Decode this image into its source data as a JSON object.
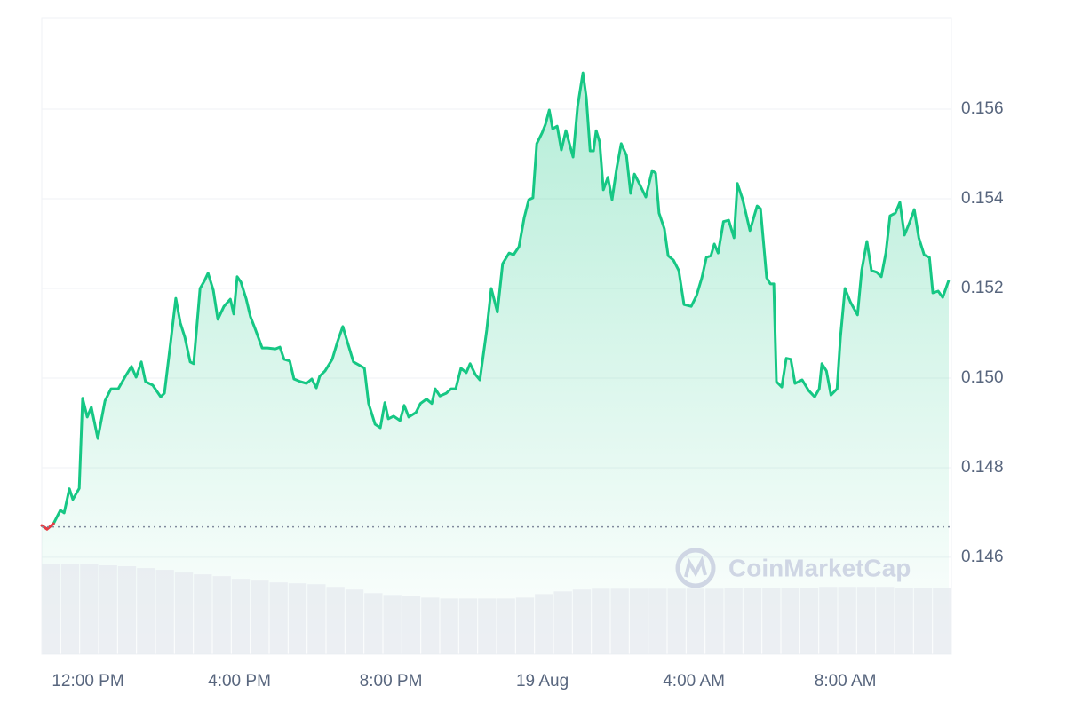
{
  "chart_data": {
    "type": "line",
    "x": [
      -1.22,
      -1.08,
      -0.91,
      -0.73,
      -0.63,
      -0.49,
      -0.4,
      -0.23,
      -0.14,
      -0.02,
      0.09,
      0.26,
      0.45,
      0.61,
      0.8,
      0.99,
      1.15,
      1.27,
      1.41,
      1.52,
      1.71,
      1.92,
      2.02,
      2.18,
      2.32,
      2.44,
      2.56,
      2.7,
      2.79,
      2.96,
      3.07,
      3.17,
      3.31,
      3.43,
      3.59,
      3.76,
      3.85,
      3.94,
      4.04,
      4.18,
      4.29,
      4.41,
      4.6,
      4.74,
      4.95,
      5.07,
      5.18,
      5.33,
      5.44,
      5.61,
      5.77,
      5.91,
      6.03,
      6.12,
      6.26,
      6.45,
      6.59,
      6.73,
      6.85,
      7.01,
      7.18,
      7.3,
      7.41,
      7.58,
      7.72,
      7.84,
      7.93,
      8.07,
      8.24,
      8.35,
      8.47,
      8.66,
      8.78,
      8.94,
      9.08,
      9.17,
      9.29,
      9.46,
      9.59,
      9.71,
      9.85,
      9.99,
      10.09,
      10.23,
      10.35,
      10.53,
      10.65,
      10.81,
      10.95,
      11.12,
      11.24,
      11.38,
      11.52,
      11.64,
      11.75,
      11.85,
      11.99,
      12.08,
      12.18,
      12.27,
      12.39,
      12.5,
      12.62,
      12.81,
      12.93,
      13.07,
      13.16,
      13.26,
      13.35,
      13.42,
      13.51,
      13.61,
      13.73,
      13.84,
      13.96,
      14.08,
      14.22,
      14.33,
      14.43,
      14.57,
      14.73,
      14.9,
      14.99,
      15.08,
      15.22,
      15.32,
      15.46,
      15.6,
      15.74,
      15.93,
      16.07,
      16.21,
      16.33,
      16.45,
      16.54,
      16.64,
      16.78,
      16.92,
      17.06,
      17.15,
      17.29,
      17.48,
      17.67,
      17.76,
      17.92,
      18.02,
      18.11,
      18.18,
      18.32,
      18.44,
      18.56,
      18.67,
      18.86,
      19.03,
      19.19,
      19.31,
      19.38,
      19.5,
      19.62,
      19.78,
      19.87,
      19.99,
      20.13,
      20.32,
      20.43,
      20.57,
      20.69,
      20.83,
      20.95,
      21.07,
      21.18,
      21.32,
      21.44,
      21.56,
      21.7,
      21.82,
      21.94,
      22.08,
      22.22,
      22.31,
      22.45,
      22.57,
      22.73
    ],
    "series": [
      {
        "color": "#16c784",
        "down_color": "#ea3943",
        "values": [
          0.14671,
          0.14663,
          0.14675,
          0.14705,
          0.14699,
          0.14753,
          0.14729,
          0.14754,
          0.14955,
          0.14913,
          0.14935,
          0.14865,
          0.14949,
          0.14976,
          0.14976,
          0.15004,
          0.15026,
          0.15002,
          0.15036,
          0.14992,
          0.14984,
          0.14958,
          0.14966,
          0.15077,
          0.15178,
          0.15123,
          0.15091,
          0.15036,
          0.15032,
          0.152,
          0.15216,
          0.15234,
          0.15196,
          0.15131,
          0.1516,
          0.15176,
          0.15143,
          0.15226,
          0.15214,
          0.15176,
          0.15137,
          0.15111,
          0.15067,
          0.15067,
          0.15065,
          0.15069,
          0.15042,
          0.15038,
          0.14998,
          0.14992,
          0.14988,
          0.14998,
          0.14978,
          0.15004,
          0.15016,
          0.15042,
          0.15081,
          0.15115,
          0.15081,
          0.15036,
          0.15028,
          0.15022,
          0.14943,
          0.14897,
          0.14889,
          0.14945,
          0.14909,
          0.14915,
          0.14905,
          0.14939,
          0.14913,
          0.14923,
          0.14943,
          0.14953,
          0.14943,
          0.14976,
          0.1496,
          0.14966,
          0.14976,
          0.14976,
          0.15022,
          0.15012,
          0.15032,
          0.15008,
          0.14996,
          0.15107,
          0.152,
          0.15147,
          0.15255,
          0.15279,
          0.15275,
          0.15293,
          0.15358,
          0.15398,
          0.15402,
          0.15523,
          0.15547,
          0.15566,
          0.15598,
          0.15556,
          0.15562,
          0.15509,
          0.15552,
          0.15493,
          0.15606,
          0.15681,
          0.15626,
          0.15507,
          0.15507,
          0.15552,
          0.15527,
          0.1542,
          0.15448,
          0.15398,
          0.15467,
          0.15523,
          0.15497,
          0.15412,
          0.15455,
          0.15432,
          0.15404,
          0.15463,
          0.15457,
          0.15368,
          0.15333,
          0.15273,
          0.15263,
          0.1524,
          0.15164,
          0.1516,
          0.15184,
          0.15224,
          0.15269,
          0.15273,
          0.15299,
          0.15279,
          0.15349,
          0.15352,
          0.15313,
          0.15434,
          0.15398,
          0.15329,
          0.15384,
          0.15378,
          0.15224,
          0.1521,
          0.1521,
          0.14992,
          0.1498,
          0.15044,
          0.15042,
          0.14988,
          0.14996,
          0.14972,
          0.14958,
          0.14976,
          0.15032,
          0.15016,
          0.14962,
          0.14976,
          0.15091,
          0.152,
          0.1517,
          0.15141,
          0.1524,
          0.15305,
          0.1524,
          0.15236,
          0.15226,
          0.15279,
          0.15362,
          0.15368,
          0.15392,
          0.15319,
          0.15348,
          0.15376,
          0.15313,
          0.15275,
          0.15269,
          0.1519,
          0.15194,
          0.1518,
          0.15218
        ]
      }
    ],
    "reference": 0.14668,
    "volume": {
      "color": "#e6e9ef",
      "lim": [
        0,
        100
      ],
      "values": [
        100,
        100,
        100,
        99,
        98,
        96,
        94,
        91,
        89,
        87,
        84,
        82,
        80,
        79,
        78,
        75,
        72,
        68,
        66,
        65,
        63,
        62,
        62,
        62,
        62,
        63,
        67,
        70,
        72,
        73,
        73,
        73,
        73,
        73,
        73,
        73,
        74,
        74,
        74,
        74,
        74,
        75,
        75,
        75,
        75,
        74,
        74,
        74
      ]
    },
    "xlim": [
      -1.22,
      22.8
    ],
    "xticks": [
      {
        "value": 0,
        "label": "12:00 PM"
      },
      {
        "value": 4,
        "label": "4:00 PM"
      },
      {
        "value": 8,
        "label": "8:00 PM"
      },
      {
        "value": 12,
        "label": "19 Aug"
      },
      {
        "value": 16,
        "label": "4:00 AM"
      },
      {
        "value": 20,
        "label": "8:00 AM"
      }
    ],
    "ylim": [
      0.14384,
      0.15804
    ],
    "yticks": [
      0.146,
      0.148,
      {
        "value": 0.15,
        "label": "0.150"
      },
      0.152,
      0.154,
      0.156
    ],
    "grid": true,
    "watermark": "CoinMarketCap"
  }
}
